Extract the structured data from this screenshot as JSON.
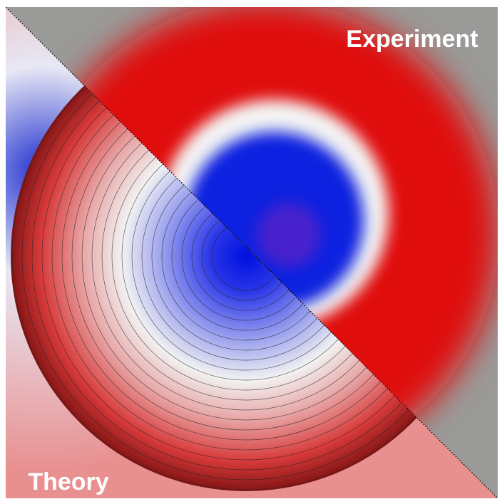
{
  "labels": {
    "experiment": "Experiment",
    "theory": "Theory"
  }
}
